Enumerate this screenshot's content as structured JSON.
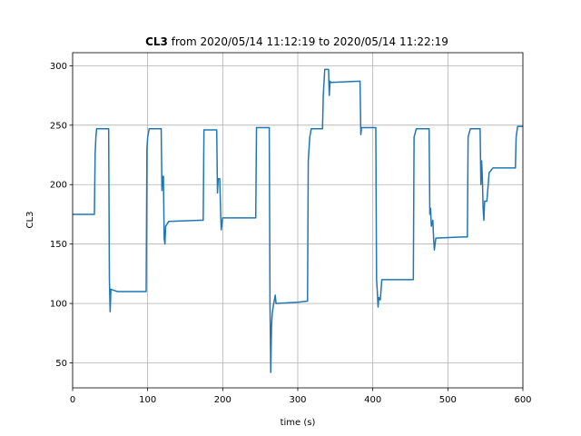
{
  "chart_data": {
    "type": "line",
    "title_bold": "CL3",
    "title": "from 2020/05/14 11:12:19 to 2020/05/14 11:22:19",
    "x_label": "time (s)",
    "y_label": "CL3",
    "color": "#1f77b4",
    "grid": true,
    "xlim": [
      0,
      600
    ],
    "ylim": [
      29,
      311
    ],
    "xticks": [
      0,
      100,
      200,
      300,
      400,
      500,
      600
    ],
    "yticks": [
      50,
      100,
      150,
      200,
      250,
      300
    ],
    "x": [
      0,
      29,
      30,
      31,
      32,
      48,
      49,
      50,
      51,
      55,
      60,
      98,
      99,
      100,
      102,
      118,
      119,
      120,
      121,
      122,
      123,
      124,
      128,
      170,
      174,
      175,
      192,
      193,
      194,
      196,
      197,
      198,
      200,
      230,
      244,
      245,
      262,
      263,
      264,
      265,
      266,
      268,
      270,
      271,
      300,
      313,
      314,
      316,
      318,
      333,
      334,
      336,
      341,
      342,
      343,
      344,
      383,
      384,
      385,
      404,
      405,
      406,
      407,
      408,
      410,
      412,
      450,
      454,
      455,
      458,
      475,
      476,
      477,
      478,
      480,
      481,
      482,
      484,
      520,
      526,
      527,
      530,
      543,
      544,
      545,
      546,
      547,
      548,
      549,
      552,
      555,
      560,
      590,
      591,
      593,
      600
    ],
    "values": [
      175,
      175,
      226,
      240,
      247,
      247,
      120,
      93,
      112,
      111,
      110,
      110,
      230,
      240,
      247,
      247,
      195,
      207,
      207,
      155,
      150,
      165,
      169,
      170,
      170,
      246,
      246,
      193,
      205,
      205,
      183,
      162,
      172,
      172,
      172,
      248,
      248,
      100,
      42,
      80,
      92,
      100,
      107,
      100,
      101,
      102,
      220,
      240,
      247,
      247,
      275,
      297,
      297,
      275,
      287,
      286,
      287,
      242,
      248,
      248,
      120,
      110,
      97,
      105,
      103,
      120,
      120,
      120,
      240,
      247,
      247,
      175,
      180,
      165,
      170,
      155,
      145,
      155,
      156,
      156,
      240,
      247,
      247,
      200,
      220,
      205,
      180,
      170,
      186,
      186,
      210,
      214,
      214,
      240,
      249,
      249
    ]
  }
}
